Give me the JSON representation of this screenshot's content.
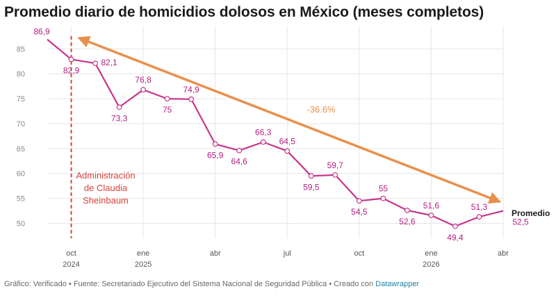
{
  "chart_data": {
    "type": "line",
    "title": "Promedio diario de homicidios dolosos en México (meses completos)",
    "x": [
      "2024-09",
      "2024-10",
      "2024-11",
      "2024-12",
      "2025-01",
      "2025-02",
      "2025-03",
      "2025-04",
      "2025-05",
      "2025-06",
      "2025-07",
      "2025-08",
      "2025-09",
      "2025-10",
      "2025-11",
      "2025-12",
      "2026-01",
      "2026-02",
      "2026-03",
      "2026-04"
    ],
    "series": [
      {
        "name": "Promedio",
        "color": "#c9348a",
        "values": [
          86.9,
          82.9,
          82.1,
          73.3,
          76.8,
          75,
          74.9,
          65.9,
          64.6,
          66.3,
          64.5,
          59.5,
          59.7,
          54.5,
          55,
          52.6,
          51.6,
          49.4,
          51.3,
          52.5
        ],
        "labels": [
          "86,9",
          "82,9",
          "82,1",
          "73,3",
          "76,8",
          "75",
          "74,9",
          "65,9",
          "64,6",
          "66,3",
          "64,5",
          "59,5",
          "59,7",
          "54,5",
          "55",
          "52,6",
          "51,6",
          "49,4",
          "51,3",
          "52,5"
        ]
      }
    ],
    "ylim": [
      47,
      87
    ],
    "yticks": [
      50,
      55,
      60,
      65,
      70,
      75,
      80,
      85
    ],
    "xticks": [
      {
        "x": "2024-10",
        "label": "oct",
        "year": "2024"
      },
      {
        "x": "2025-01",
        "label": "ene",
        "year": "2025"
      },
      {
        "x": "2025-04",
        "label": "abr",
        "year": ""
      },
      {
        "x": "2025-07",
        "label": "jul",
        "year": ""
      },
      {
        "x": "2025-10",
        "label": "oct",
        "year": ""
      },
      {
        "x": "2026-01",
        "label": "ene",
        "year": "2026"
      },
      {
        "x": "2026-04",
        "label": "abr",
        "year": ""
      }
    ],
    "grid": true,
    "annotations": {
      "administration": {
        "x": "2024-10",
        "lines": [
          "Administración",
          "de Claudia",
          "Sheinbaum"
        ],
        "color": "#d9433a"
      },
      "change": {
        "text": "-36.6%",
        "from": "2024-10",
        "to": "2026-04",
        "color": "#e8904d"
      }
    },
    "end_label": "Promedio"
  },
  "footer": {
    "text": "Gráfico: Verificado  • Fuente: Secretariado Ejecutivo del Sistema Nacional de Seguridad Pública • Creado con ",
    "link": "Datawrapper"
  }
}
